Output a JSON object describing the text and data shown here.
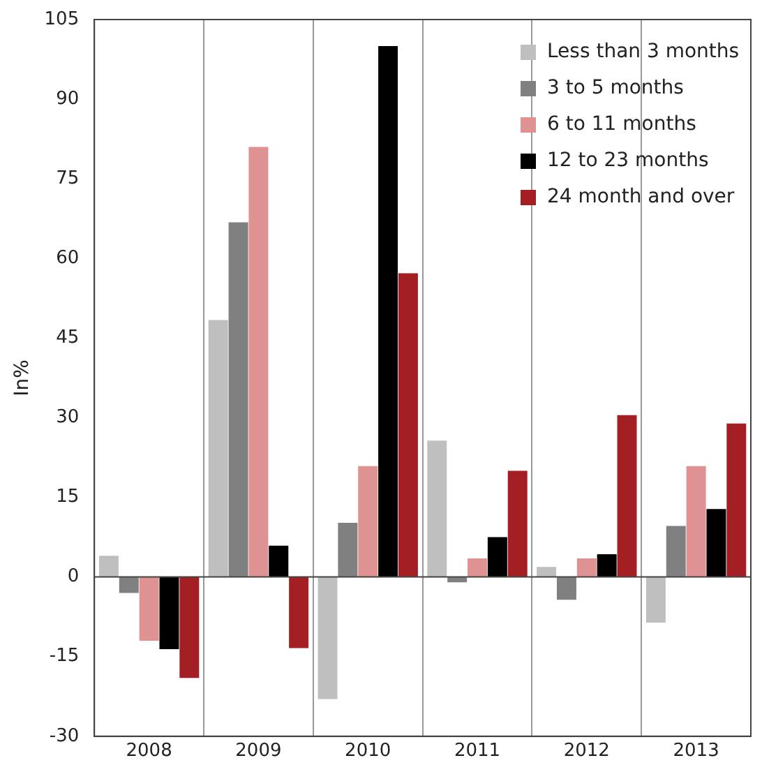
{
  "chart_data": {
    "type": "bar",
    "ylabel": "In%",
    "categories": [
      "2008",
      "2009",
      "2010",
      "2011",
      "2012",
      "2013"
    ],
    "series": [
      {
        "name": "Less than 3 months",
        "color": "#bfbfbf",
        "values": [
          4,
          48.4,
          -23,
          25.7,
          1.9,
          -8.6
        ]
      },
      {
        "name": "3 to 5 months",
        "color": "#808080",
        "values": [
          -3,
          66.8,
          10.2,
          -1,
          -4.3,
          9.6
        ]
      },
      {
        "name": "6 to 11 months",
        "color": "#de9292",
        "values": [
          -12,
          81,
          20.9,
          3.5,
          3.5,
          20.9
        ]
      },
      {
        "name": "12 to 23 months",
        "color": "#000000",
        "values": [
          -13.6,
          5.9,
          100,
          7.5,
          4.3,
          12.8
        ]
      },
      {
        "name": "24 month and over",
        "color": "#a31f24",
        "values": [
          -19,
          -13.4,
          57.2,
          20,
          30.5,
          28.9
        ]
      }
    ],
    "ylim": [
      -30,
      105
    ],
    "yticks": [
      -30,
      -15,
      0,
      15,
      30,
      45,
      60,
      75,
      90,
      105
    ],
    "grid": "x",
    "legend": "top right"
  }
}
